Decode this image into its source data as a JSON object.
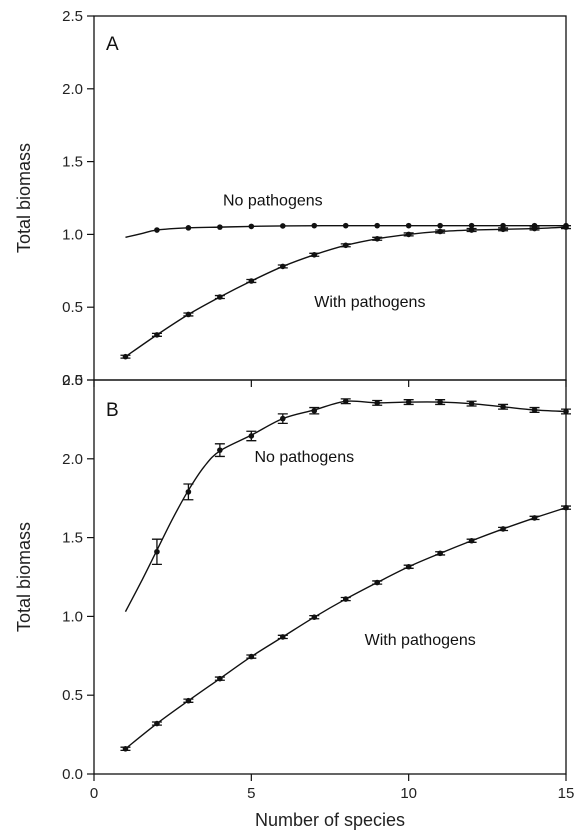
{
  "figure": {
    "xlabel": "Number of species"
  },
  "chart_data": [
    {
      "type": "line",
      "panel": "A",
      "ylabel": "Total biomass",
      "xlim": [
        0,
        15
      ],
      "ylim": [
        0,
        2.5
      ],
      "xticks": [
        "0",
        "5",
        "10",
        "15"
      ],
      "yticks": [
        "0.0",
        "0.5",
        "1.0",
        "1.5",
        "2.0",
        "2.5"
      ],
      "series": [
        {
          "name": "No pathogens",
          "curve_x": [
            1,
            1.5,
            2,
            3,
            4,
            5,
            6,
            8,
            10,
            12,
            15
          ],
          "curve_y": [
            0.98,
            1.005,
            1.03,
            1.045,
            1.05,
            1.055,
            1.058,
            1.06,
            1.06,
            1.06,
            1.06
          ],
          "points_x": [
            2,
            3,
            4,
            5,
            6,
            7,
            8,
            9,
            10,
            11,
            12,
            13,
            14,
            15
          ],
          "points_y": [
            1.03,
            1.045,
            1.05,
            1.055,
            1.058,
            1.06,
            1.06,
            1.06,
            1.06,
            1.06,
            1.06,
            1.06,
            1.06,
            1.06
          ],
          "errors": [
            0,
            0,
            0,
            0,
            0,
            0,
            0,
            0,
            0,
            0,
            0,
            0,
            0,
            0
          ]
        },
        {
          "name": "With pathogens",
          "curve_x": [
            1,
            2,
            3,
            4,
            5,
            6,
            7,
            8,
            9,
            10,
            11,
            12,
            13,
            14,
            15
          ],
          "curve_y": [
            0.16,
            0.31,
            0.45,
            0.57,
            0.68,
            0.78,
            0.86,
            0.925,
            0.97,
            1.0,
            1.02,
            1.03,
            1.035,
            1.04,
            1.05
          ],
          "points_x": [
            1,
            2,
            3,
            4,
            5,
            6,
            7,
            8,
            9,
            10,
            11,
            12,
            13,
            14,
            15
          ],
          "points_y": [
            0.16,
            0.31,
            0.45,
            0.57,
            0.68,
            0.78,
            0.86,
            0.925,
            0.97,
            1.0,
            1.02,
            1.03,
            1.035,
            1.04,
            1.05
          ],
          "errors": [
            0.01,
            0.01,
            0.01,
            0.01,
            0.01,
            0.01,
            0.01,
            0.01,
            0.01,
            0.01,
            0.01,
            0.01,
            0.01,
            0.01,
            0.01
          ]
        }
      ],
      "annotations": [
        {
          "text": "No pathogens",
          "x": 4.1,
          "y": 1.2
        },
        {
          "text": "With pathogens",
          "x": 7.0,
          "y": 0.5
        }
      ]
    },
    {
      "type": "line",
      "panel": "B",
      "ylabel": "Total biomass",
      "xlim": [
        0,
        15
      ],
      "ylim": [
        0,
        2.5
      ],
      "xticks": [
        "0",
        "5",
        "10",
        "15"
      ],
      "yticks": [
        "0.0",
        "0.5",
        "1.0",
        "1.5",
        "2.0",
        "2.5"
      ],
      "series": [
        {
          "name": "No pathogens",
          "curve_x": [
            1,
            1.5,
            2,
            2.5,
            3,
            3.5,
            4,
            5,
            6,
            7,
            8,
            9,
            10,
            11,
            12,
            13,
            14,
            15
          ],
          "curve_y": [
            1.03,
            1.22,
            1.42,
            1.62,
            1.8,
            1.95,
            2.05,
            2.15,
            2.255,
            2.31,
            2.365,
            2.355,
            2.36,
            2.36,
            2.35,
            2.33,
            2.31,
            2.3
          ],
          "points_x": [
            2,
            3,
            4,
            5,
            6,
            7,
            8,
            9,
            10,
            11,
            12,
            13,
            14,
            15
          ],
          "points_y": [
            1.41,
            1.79,
            2.055,
            2.145,
            2.255,
            2.305,
            2.365,
            2.355,
            2.36,
            2.36,
            2.35,
            2.33,
            2.31,
            2.3
          ],
          "errors": [
            0.08,
            0.05,
            0.04,
            0.03,
            0.03,
            0.02,
            0.015,
            0.015,
            0.015,
            0.015,
            0.015,
            0.015,
            0.015,
            0.015
          ]
        },
        {
          "name": "With pathogens",
          "curve_x": [
            1,
            2,
            3,
            4,
            5,
            6,
            7,
            8,
            9,
            10,
            11,
            12,
            13,
            14,
            15
          ],
          "curve_y": [
            0.16,
            0.32,
            0.465,
            0.605,
            0.745,
            0.87,
            0.995,
            1.11,
            1.215,
            1.315,
            1.4,
            1.48,
            1.555,
            1.625,
            1.69
          ],
          "points_x": [
            1,
            2,
            3,
            4,
            5,
            6,
            7,
            8,
            9,
            10,
            11,
            12,
            13,
            14,
            15
          ],
          "points_y": [
            0.16,
            0.32,
            0.465,
            0.605,
            0.745,
            0.87,
            0.995,
            1.11,
            1.215,
            1.315,
            1.4,
            1.48,
            1.555,
            1.625,
            1.69
          ],
          "errors": [
            0.01,
            0.01,
            0.01,
            0.01,
            0.01,
            0.01,
            0.01,
            0.01,
            0.01,
            0.01,
            0.01,
            0.01,
            0.01,
            0.01,
            0.01
          ]
        }
      ],
      "annotations": [
        {
          "text": "No pathogens",
          "x": 5.1,
          "y": 1.98
        },
        {
          "text": "With pathogens",
          "x": 8.6,
          "y": 0.82
        }
      ]
    }
  ]
}
